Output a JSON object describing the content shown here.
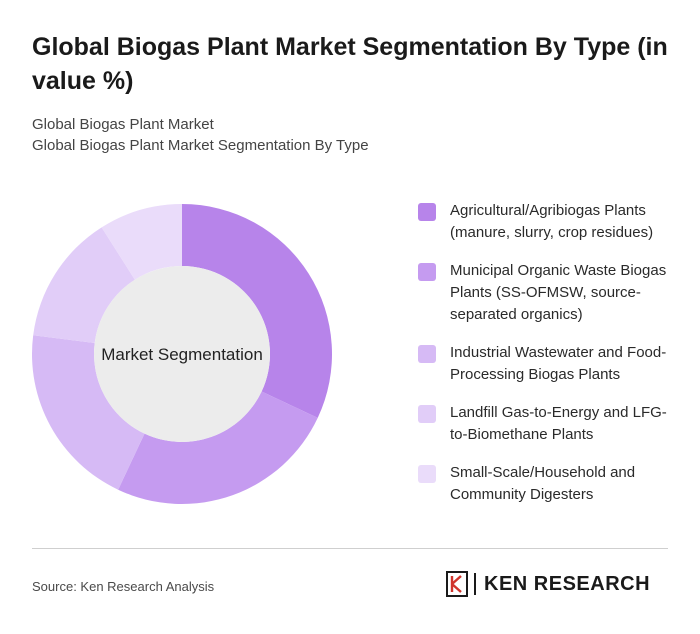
{
  "title": "Global Biogas Plant Market Segmentation By Type (in value %)",
  "subtitle_lines": [
    "Global Biogas Plant Market",
    "Global Biogas Plant Market Segmentation By Type"
  ],
  "chart_data": {
    "type": "pie",
    "variant": "donut",
    "center_label": "Market Segmentation",
    "series": [
      {
        "label": "Agricultural/Agribiogas Plants (manure, slurry, crop residues)",
        "value": 32,
        "color": "#b784ea"
      },
      {
        "label": "Municipal Organic Waste Biogas Plants (SS-OFMSW, source-separated organics)",
        "value": 25,
        "color": "#c59bf0"
      },
      {
        "label": "Industrial Wastewater and Food-Processing Biogas Plants",
        "value": 20,
        "color": "#d6baf5"
      },
      {
        "label": "Landfill Gas-to-Energy and LFG-to-Biomethane Plants",
        "value": 14,
        "color": "#e1cdf8"
      },
      {
        "label": "Small-Scale/Household and Community Digesters",
        "value": 9,
        "color": "#eadcfa"
      }
    ],
    "legend_position": "right"
  },
  "footer": {
    "source": "Source: Ken Research Analysis",
    "brand": "KEN RESEARCH"
  }
}
